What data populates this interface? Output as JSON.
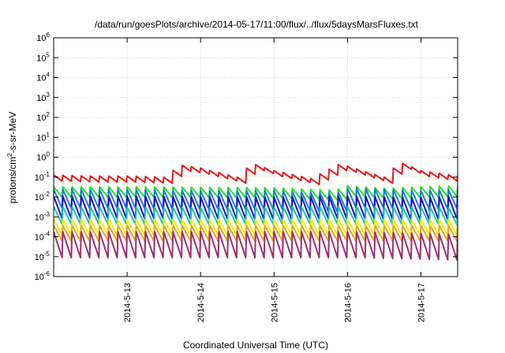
{
  "chart_data": {
    "type": "line",
    "title": "/data/run/goesPlots/archive/2014-05-17/11:00/flux/../flux/5daysMarsFluxes.txt",
    "xlabel": "Coordinated Universal Time (UTC)",
    "ylabel": {
      "base": "protons/cm",
      "sup": "2",
      "rest": "-s-sr-MeV"
    },
    "xlim": [
      "2014-05-12 00:00",
      "2014-05-17 12:00"
    ],
    "ylim": [
      1e-06,
      1000000.0
    ],
    "yscale": "log",
    "grid": true,
    "grid_style": "dotted",
    "x_ticks": [
      {
        "date": "2014-05-13 00:00",
        "label": "2014-5-13"
      },
      {
        "date": "2014-05-14 00:00",
        "label": "2014-5-14"
      },
      {
        "date": "2014-05-15 00:00",
        "label": "2014-5-15"
      },
      {
        "date": "2014-05-16 00:00",
        "label": "2014-5-16"
      },
      {
        "date": "2014-05-17 00:00",
        "label": "2014-5-17"
      }
    ],
    "y_ticks": [
      {
        "base": "10",
        "exp": "-6",
        "value": 1e-06
      },
      {
        "base": "10",
        "exp": "-5",
        "value": 1e-05
      },
      {
        "base": "10",
        "exp": "-4",
        "value": 0.0001
      },
      {
        "base": "10",
        "exp": "-3",
        "value": 0.001
      },
      {
        "base": "10",
        "exp": "-2",
        "value": 0.01
      },
      {
        "base": "10",
        "exp": "-1",
        "value": 0.1
      },
      {
        "base": "10",
        "exp": "0",
        "value": 1
      },
      {
        "base": "10",
        "exp": "1",
        "value": 10
      },
      {
        "base": "10",
        "exp": "2",
        "value": 100
      },
      {
        "base": "10",
        "exp": "3",
        "value": 1000
      },
      {
        "base": "10",
        "exp": "4",
        "value": 10000
      },
      {
        "base": "10",
        "exp": "5",
        "value": 100000
      },
      {
        "base": "10",
        "exp": "6",
        "value": 1000000
      }
    ],
    "cycle_hours": 3,
    "series": [
      {
        "color": "#e41a1c",
        "x": [
          "2014-05-12 00:00",
          "2014-05-12 12:00",
          "2014-05-13 00:00",
          "2014-05-13 12:00",
          "2014-05-13 16:00",
          "2014-05-13 18:00",
          "2014-05-14 00:00",
          "2014-05-14 12:00",
          "2014-05-14 15:00",
          "2014-05-14 18:00",
          "2014-05-15 00:00",
          "2014-05-15 12:00",
          "2014-05-15 21:00",
          "2014-05-16 00:00",
          "2014-05-16 12:00",
          "2014-05-16 15:00",
          "2014-05-16 18:00",
          "2014-05-17 00:00",
          "2014-05-17 12:00"
        ],
        "values": [
          0.09,
          0.08,
          0.08,
          0.07,
          0.2,
          0.28,
          0.2,
          0.07,
          0.2,
          0.3,
          0.15,
          0.06,
          0.3,
          0.25,
          0.07,
          0.2,
          0.35,
          0.15,
          0.08
        ],
        "ripple": [
          0.06,
          0.12
        ]
      },
      {
        "color": "#1fe41f",
        "x": [
          "2014-05-12 00:00",
          "2014-05-13 00:00",
          "2014-05-14 00:00",
          "2014-05-15 00:00",
          "2014-05-15 20:00",
          "2014-05-16 00:00",
          "2014-05-16 12:00",
          "2014-05-17 00:00",
          "2014-05-17 12:00"
        ],
        "values": [
          0.018,
          0.018,
          0.017,
          0.016,
          0.012,
          0.02,
          0.015,
          0.018,
          0.02
        ],
        "ripple": [
          0.006,
          0.02
        ]
      },
      {
        "color": "#1f78e4",
        "x": [
          "2014-05-12 00:00",
          "2014-05-13 00:00",
          "2014-05-14 00:00",
          "2014-05-15 00:00",
          "2014-05-15 20:00",
          "2014-05-16 00:00",
          "2014-05-17 00:00",
          "2014-05-17 12:00"
        ],
        "values": [
          0.008,
          0.008,
          0.007,
          0.007,
          0.005,
          0.009,
          0.007,
          0.008
        ],
        "ripple": [
          0.001,
          0.009
        ]
      },
      {
        "color": "#1414c8",
        "x": [
          "2014-05-12 00:00",
          "2014-05-13 00:00",
          "2014-05-14 00:00",
          "2014-05-15 00:00",
          "2014-05-16 00:00",
          "2014-05-17 00:00",
          "2014-05-17 12:00"
        ],
        "values": [
          0.003,
          0.003,
          0.0028,
          0.0027,
          0.003,
          0.0025,
          0.003
        ],
        "ripple": [
          0.0003,
          0.004
        ]
      },
      {
        "color": "#20c0b0",
        "x": [
          "2014-05-12 00:00",
          "2014-05-14 00:00",
          "2014-05-16 00:00",
          "2014-05-17 12:00"
        ],
        "values": [
          0.0012,
          0.0011,
          0.0012,
          0.0011
        ],
        "ripple": [
          0.0002,
          0.0015
        ]
      },
      {
        "color": "#f0f000",
        "x": [
          "2014-05-12 00:00",
          "2014-05-14 00:00",
          "2014-05-16 00:00",
          "2014-05-17 12:00"
        ],
        "values": [
          0.0003,
          0.0003,
          0.0003,
          0.0003
        ],
        "ripple": [
          8e-05,
          0.0005
        ]
      },
      {
        "color": "#f0a020",
        "x": [
          "2014-05-12 00:00",
          "2014-05-14 00:00",
          "2014-05-16 00:00",
          "2014-05-17 12:00"
        ],
        "values": [
          0.00015,
          0.00015,
          0.00015,
          0.00015
        ],
        "ripple": [
          5e-05,
          0.0003
        ]
      },
      {
        "color": "#9c3070",
        "x": [
          "2014-05-12 00:00",
          "2014-05-14 00:00",
          "2014-05-16 00:00",
          "2014-05-17 12:00"
        ],
        "values": [
          4e-05,
          4e-05,
          4e-05,
          3e-05
        ],
        "ripple": [
          5e-06,
          0.0001
        ]
      }
    ]
  }
}
